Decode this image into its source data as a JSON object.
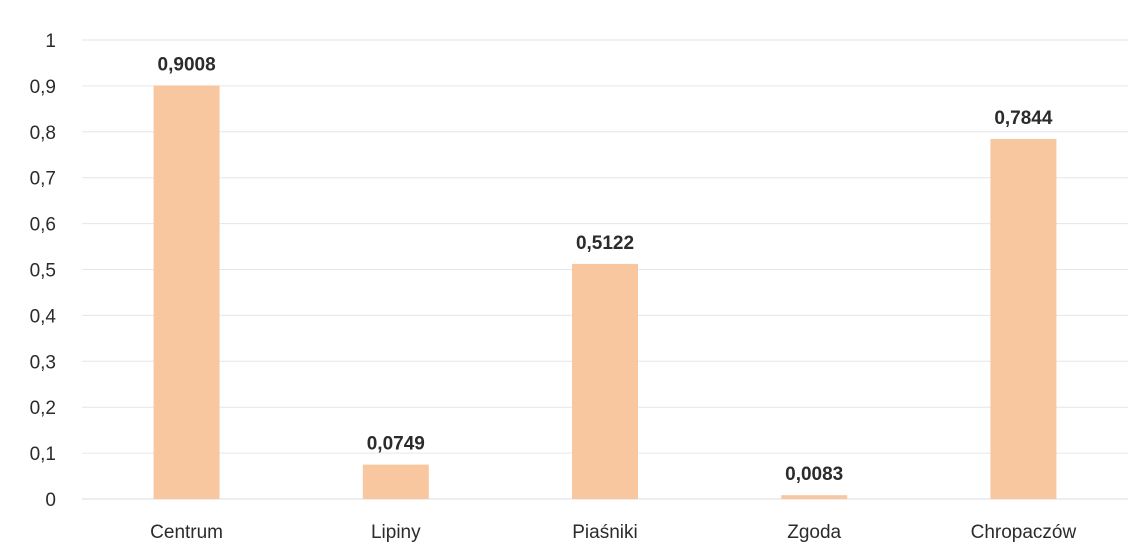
{
  "chart_data": {
    "type": "bar",
    "title": "",
    "xlabel": "",
    "ylabel": "",
    "categories": [
      "Centrum",
      "Lipiny",
      "Piaśniki",
      "Zgoda",
      "Chropaczów"
    ],
    "values": [
      0.9008,
      0.0749,
      0.5122,
      0.0083,
      0.7844
    ],
    "value_labels": [
      "0,9008",
      "0,0749",
      "0,5122",
      "0,0083",
      "0,7844"
    ],
    "ylim": [
      0,
      1
    ],
    "yticks": [
      {
        "value": 0,
        "label": "0"
      },
      {
        "value": 0.1,
        "label": "0,1"
      },
      {
        "value": 0.2,
        "label": "0,2"
      },
      {
        "value": 0.3,
        "label": "0,3"
      },
      {
        "value": 0.4,
        "label": "0,4"
      },
      {
        "value": 0.5,
        "label": "0,5"
      },
      {
        "value": 0.6,
        "label": "0,6"
      },
      {
        "value": 0.7,
        "label": "0,7"
      },
      {
        "value": 0.8,
        "label": "0,8"
      },
      {
        "value": 0.9,
        "label": "0,9"
      },
      {
        "value": 1,
        "label": "1"
      }
    ],
    "grid": true,
    "legend": "none",
    "bar_color": "#f8c7a0",
    "grid_color": "#e3e6ec"
  }
}
